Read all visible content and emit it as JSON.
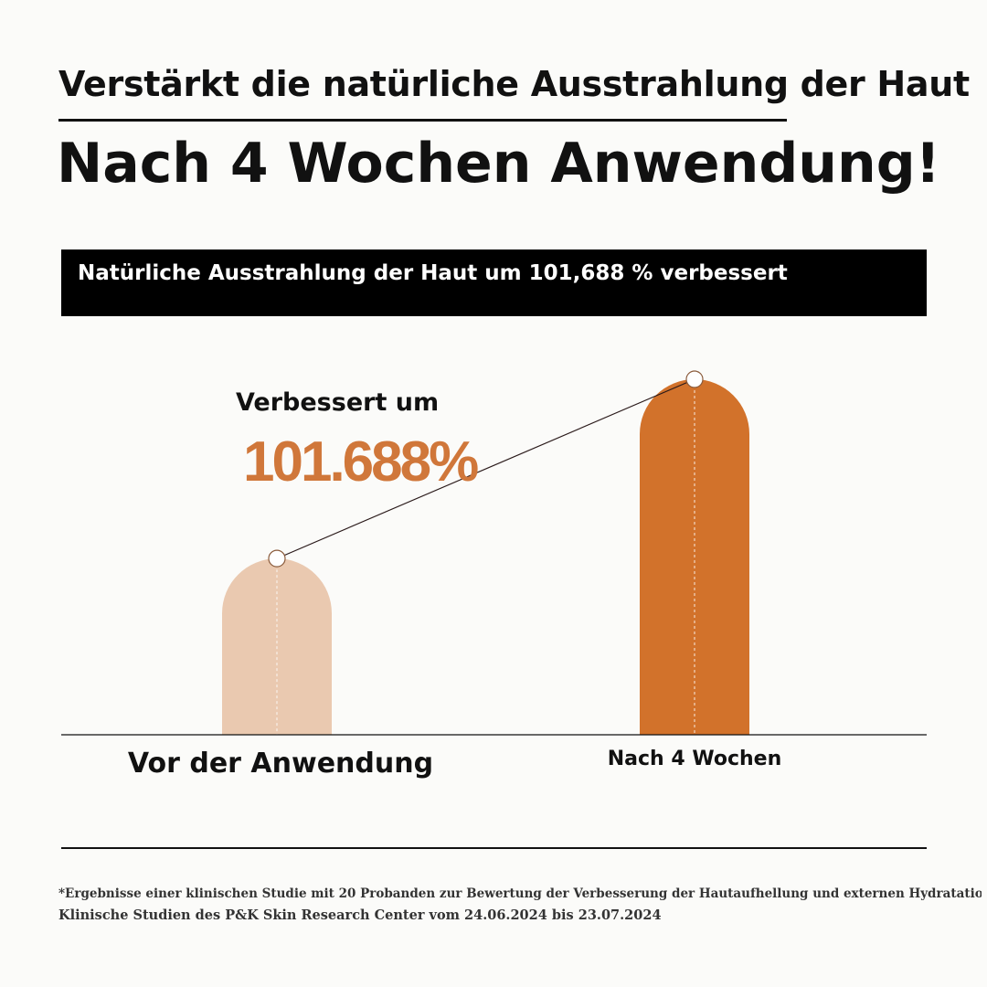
{
  "headline": "Verstärkt die natürliche Ausstrahlung der Haut",
  "title": "Nach 4 Wochen Anwendung!",
  "banner": "Natürliche Ausstrahlung der Haut um 101,688 % verbessert",
  "annotation": {
    "label": "Verbessert um",
    "value": "101.688%"
  },
  "chart_data": {
    "type": "bar",
    "categories": [
      "Vor der Anwendung",
      "Nach 4 Wochen"
    ],
    "values": [
      100,
      201.688
    ],
    "colors": [
      "#eac9b0",
      "#d2722b"
    ],
    "improvement_label": "101.688%",
    "title": "",
    "xlabel": "",
    "ylabel": "",
    "grid": false
  },
  "footnote": {
    "line1": "*Ergebnisse einer klinischen Studie mit 20 Probanden zur Bewertung der Verbesserung der Hautaufhellung und externen Hydratation.",
    "line2": "Klinische Studien des P&K Skin Research Center vom 24.06.2024 bis 23.07.2024"
  }
}
